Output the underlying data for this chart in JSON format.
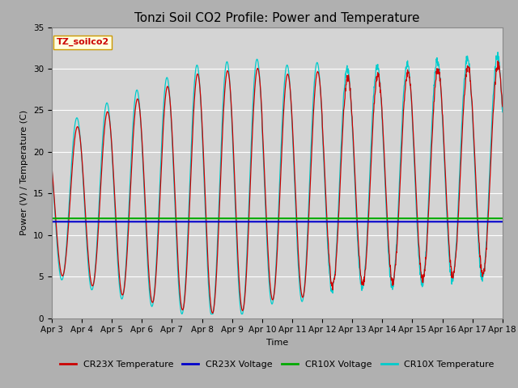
{
  "title": "Tonzi Soil CO2 Profile: Power and Temperature",
  "xlabel": "Time",
  "ylabel": "Power (V) / Temperature (C)",
  "ylim": [
    0,
    35
  ],
  "annotation": "TZ_soilco2",
  "cr23x_voltage": 11.6,
  "cr10x_voltage": 12.0,
  "fig_facecolor": "#c8c8c8",
  "plot_facecolor": "#d8d8d8",
  "cr23x_temp_color": "#cc0000",
  "cr23x_volt_color": "#0000cc",
  "cr10x_volt_color": "#00aa00",
  "cr10x_temp_color": "#00cccc",
  "legend_labels": [
    "CR23X Temperature",
    "CR23X Voltage",
    "CR10X Voltage",
    "CR10X Temperature"
  ],
  "xtick_labels": [
    "Apr 3",
    "Apr 4",
    "Apr 5",
    "Apr 6",
    "Apr 7",
    "Apr 8",
    "Apr 9",
    "Apr 10",
    "Apr 11",
    "Apr 12",
    "Apr 13",
    "Apr 14",
    "Apr 15",
    "Apr 16",
    "Apr 17",
    "Apr 18"
  ],
  "ytick_values": [
    0,
    5,
    10,
    15,
    20,
    25,
    30,
    35
  ],
  "title_fontsize": 11,
  "axis_label_fontsize": 8,
  "tick_fontsize": 7.5,
  "legend_fontsize": 8,
  "annotation_fontsize": 8
}
